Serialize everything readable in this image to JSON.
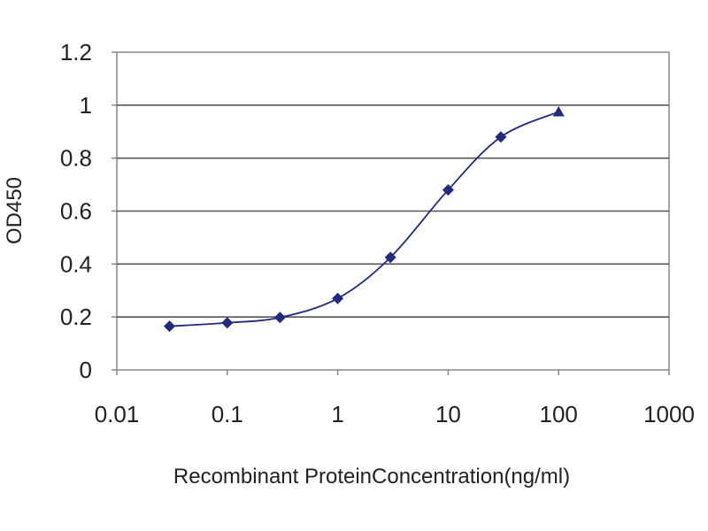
{
  "chart_data": {
    "type": "line",
    "title": "",
    "xlabel": "Recombinant ProteinConcentration(ng/ml)",
    "ylabel": "OD450",
    "x_scale": "log",
    "xlim": [
      0.01,
      1000
    ],
    "ylim": [
      0,
      1.2
    ],
    "x_ticks": [
      0.01,
      0.1,
      1,
      10,
      100,
      1000
    ],
    "x_tick_labels": [
      "0.01",
      "0.1",
      "1",
      "10",
      "100",
      "1000"
    ],
    "y_ticks": [
      0,
      0.2,
      0.4,
      0.6,
      0.8,
      1,
      1.2
    ],
    "y_tick_labels": [
      "0",
      "0.2",
      "0.4",
      "0.6",
      "0.8",
      "1",
      "1.2"
    ],
    "grid": "horizontal",
    "legend": "none",
    "series": [
      {
        "x": [
          0.03,
          0.1,
          0.3,
          1,
          3,
          10,
          30,
          100
        ],
        "y": [
          0.165,
          0.178,
          0.198,
          0.27,
          0.425,
          0.68,
          0.88,
          0.975
        ],
        "color": "#1f2a80",
        "marker": "diamond"
      }
    ]
  }
}
